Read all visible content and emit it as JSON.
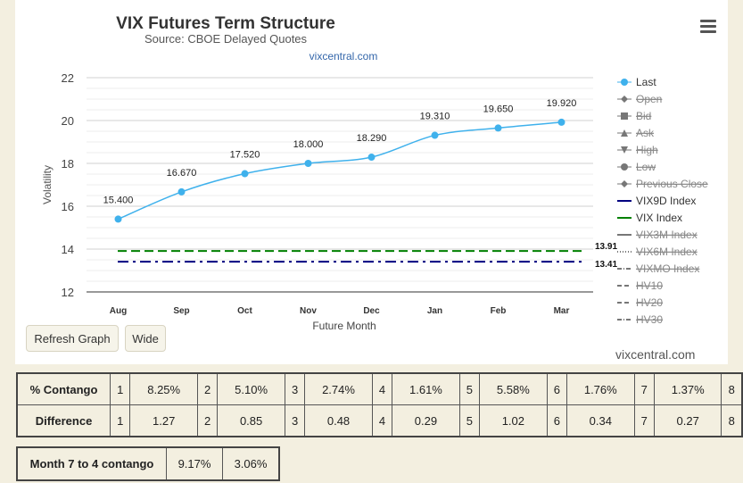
{
  "chart_data": {
    "type": "line",
    "title": "VIX Futures Term Structure",
    "subtitle": "Source: CBOE Delayed Quotes",
    "link": "vixcentral.com",
    "xlabel": "Future Month",
    "ylabel": "Volatility",
    "categories": [
      "Aug",
      "Sep",
      "Oct",
      "Nov",
      "Dec",
      "Jan",
      "Feb",
      "Mar"
    ],
    "ylim": [
      12,
      22
    ],
    "yticks": [
      12,
      14,
      16,
      18,
      20,
      22
    ],
    "grid": true,
    "legend_position": "right",
    "series": [
      {
        "name": "Last",
        "values": [
          15.4,
          16.67,
          17.52,
          18.0,
          18.29,
          19.31,
          19.65,
          19.92
        ],
        "labels": [
          "15.400",
          "16.670",
          "17.520",
          "18.000",
          "18.290",
          "19.310",
          "19.650",
          "19.920"
        ],
        "color": "#3fb1ec"
      },
      {
        "name": "VIX9D Index",
        "constant": 13.41,
        "label": "13.41",
        "color": "#000080",
        "dash": "dashdot"
      },
      {
        "name": "VIX Index",
        "constant": 13.91,
        "label": "13.91",
        "color": "#008000",
        "dash": "dash"
      }
    ],
    "legend": [
      {
        "name": "Last",
        "symbol": "circle-line",
        "color": "#3fb1ec",
        "hidden": false
      },
      {
        "name": "Open",
        "symbol": "diamond",
        "color": "#666666",
        "hidden": true
      },
      {
        "name": "Bid",
        "symbol": "square",
        "color": "#666666",
        "hidden": true
      },
      {
        "name": "Ask",
        "symbol": "triangle",
        "color": "#666666",
        "hidden": true
      },
      {
        "name": "High",
        "symbol": "triangle-down",
        "color": "#666666",
        "hidden": true
      },
      {
        "name": "Low",
        "symbol": "circle",
        "color": "#666666",
        "hidden": true
      },
      {
        "name": "Previous Close",
        "symbol": "diamond",
        "color": "#666666",
        "hidden": true
      },
      {
        "name": "VIX9D Index",
        "symbol": "line",
        "color": "#000080",
        "hidden": false
      },
      {
        "name": "VIX Index",
        "symbol": "line",
        "color": "#008000",
        "hidden": false
      },
      {
        "name": "VIX3M Index",
        "symbol": "line",
        "color": "#666666",
        "hidden": true
      },
      {
        "name": "VIX6M Index",
        "symbol": "dot",
        "color": "#666666",
        "hidden": true
      },
      {
        "name": "VIXMO Index",
        "symbol": "dashdot",
        "color": "#666666",
        "hidden": true
      },
      {
        "name": "HV10",
        "symbol": "dash",
        "color": "#666666",
        "hidden": true
      },
      {
        "name": "HV20",
        "symbol": "dash",
        "color": "#666666",
        "hidden": true
      },
      {
        "name": "HV30",
        "symbol": "dashdot",
        "color": "#666666",
        "hidden": true
      }
    ]
  },
  "buttons": {
    "refresh": "Refresh Graph",
    "wide": "Wide"
  },
  "watermark": "vixcentral.com",
  "contango_table": {
    "rows": [
      {
        "label": "% Contango",
        "cells": [
          [
            "1",
            "8.25%"
          ],
          [
            "2",
            "5.10%"
          ],
          [
            "3",
            "2.74%"
          ],
          [
            "4",
            "1.61%"
          ],
          [
            "5",
            "5.58%"
          ],
          [
            "6",
            "1.76%"
          ],
          [
            "7",
            "1.37%"
          ],
          [
            "8",
            ""
          ]
        ]
      },
      {
        "label": "Difference",
        "cells": [
          [
            "1",
            "1.27"
          ],
          [
            "2",
            "0.85"
          ],
          [
            "3",
            "0.48"
          ],
          [
            "4",
            "0.29"
          ],
          [
            "5",
            "1.02"
          ],
          [
            "6",
            "0.34"
          ],
          [
            "7",
            "0.27"
          ],
          [
            "8",
            ""
          ]
        ]
      }
    ]
  },
  "month_table": {
    "label": "Month 7 to 4 contango",
    "values": [
      "9.17%",
      "3.06%"
    ]
  }
}
